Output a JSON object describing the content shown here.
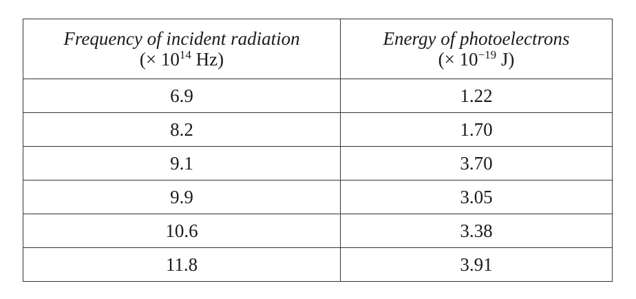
{
  "table": {
    "headers": [
      {
        "title": "Frequency of incident radiation",
        "unit_prefix": "(× 10",
        "unit_exponent": "14",
        "unit_suffix": " Hz)"
      },
      {
        "title": "Energy of photoelectrons",
        "unit_prefix": "(× 10",
        "unit_exponent": "−19",
        "unit_suffix": " J)"
      }
    ],
    "rows": [
      [
        "6.9",
        "1.22"
      ],
      [
        "8.2",
        "1.70"
      ],
      [
        "9.1",
        "3.70"
      ],
      [
        "9.9",
        "3.05"
      ],
      [
        "10.6",
        "3.38"
      ],
      [
        "11.8",
        "3.91"
      ]
    ]
  }
}
